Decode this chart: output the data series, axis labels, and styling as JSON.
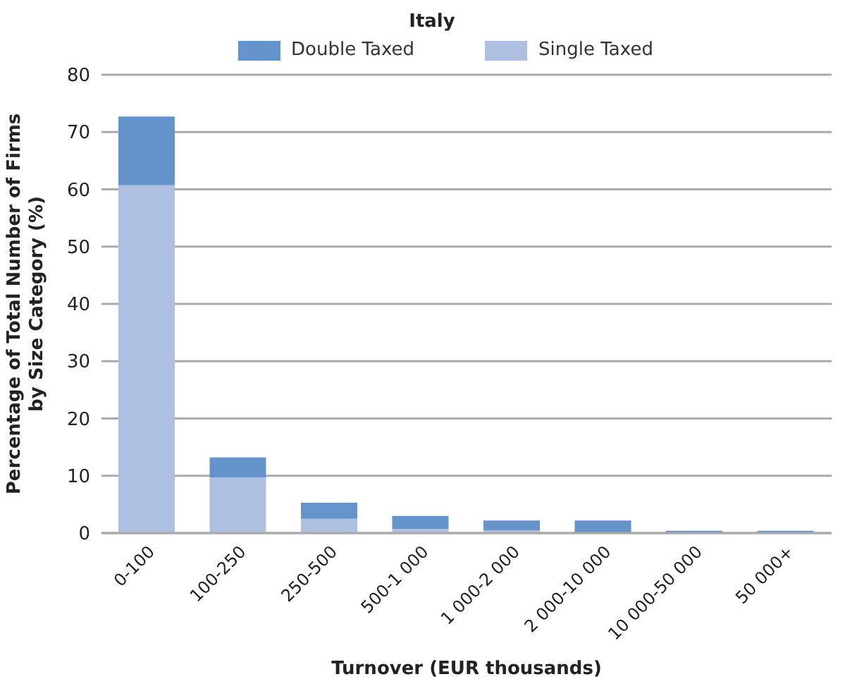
{
  "chart_data": {
    "type": "bar",
    "title": "Italy",
    "xlabel": "Turnover (EUR thousands)",
    "ylabel": "Percentage of Total Number of Firms by Size Category (%)",
    "categories": [
      "0-100",
      "100-250",
      "250-500",
      "500-1 000",
      "1 000-2 000",
      "2 000-10 000",
      "10 000-50 000",
      "50 000+"
    ],
    "stacked": true,
    "series": [
      {
        "name": "Single Taxed",
        "color": "#adc0e2",
        "values": [
          60.7,
          9.7,
          2.5,
          0.7,
          0.5,
          0,
          0,
          0
        ]
      },
      {
        "name": "Double Taxed",
        "color": "#6594cd",
        "values": [
          12.0,
          3.5,
          2.8,
          2.3,
          1.7,
          2.2,
          0.4,
          0.4
        ]
      }
    ],
    "ylim": [
      0,
      80
    ],
    "yticks": [
      0,
      10,
      20,
      30,
      40,
      50,
      60,
      70,
      80
    ],
    "grid": "y",
    "legend": "top"
  }
}
